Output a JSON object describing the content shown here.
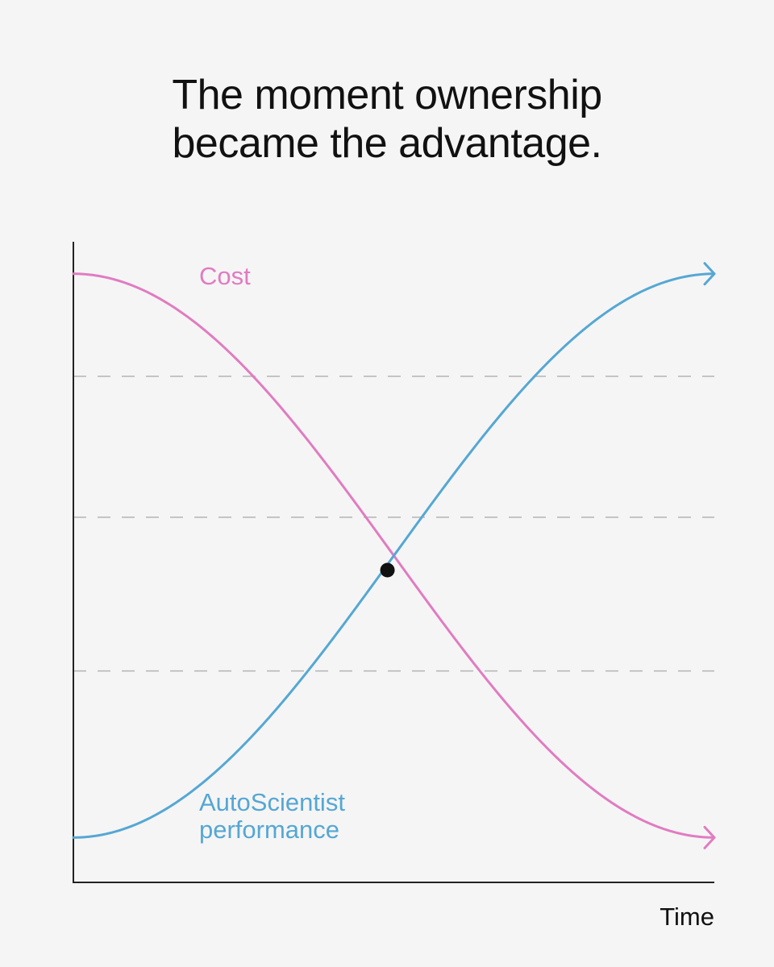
{
  "title": {
    "line1": "The moment ownership",
    "line2": "became the advantage."
  },
  "chart_data": {
    "type": "line",
    "title": "The moment ownership became the advantage.",
    "xlabel": "Time",
    "ylabel": "",
    "x_range": [
      0,
      1
    ],
    "y_range": [
      0,
      1
    ],
    "grid": "horizontal-dashed",
    "grid_levels": [
      0.33,
      0.57,
      0.79
    ],
    "series": [
      {
        "name": "Cost",
        "color": "#e07cc1",
        "shape": "falling-sigmoid",
        "x": [
          0.0,
          0.25,
          0.5,
          0.75,
          1.0
        ],
        "values": [
          0.95,
          0.75,
          0.49,
          0.2,
          0.07
        ],
        "arrow_end": true
      },
      {
        "name": "AutoScientist performance",
        "label_lines": [
          "AutoScientist",
          "performance"
        ],
        "color": "#55a7d3",
        "shape": "rising-sigmoid",
        "x": [
          0.0,
          0.25,
          0.5,
          0.75,
          1.0
        ],
        "values": [
          0.07,
          0.22,
          0.49,
          0.79,
          0.95
        ],
        "arrow_end": true
      }
    ],
    "annotations": [
      {
        "type": "intersection-point",
        "x": 0.49,
        "y": 0.49,
        "color": "#111111"
      }
    ]
  }
}
